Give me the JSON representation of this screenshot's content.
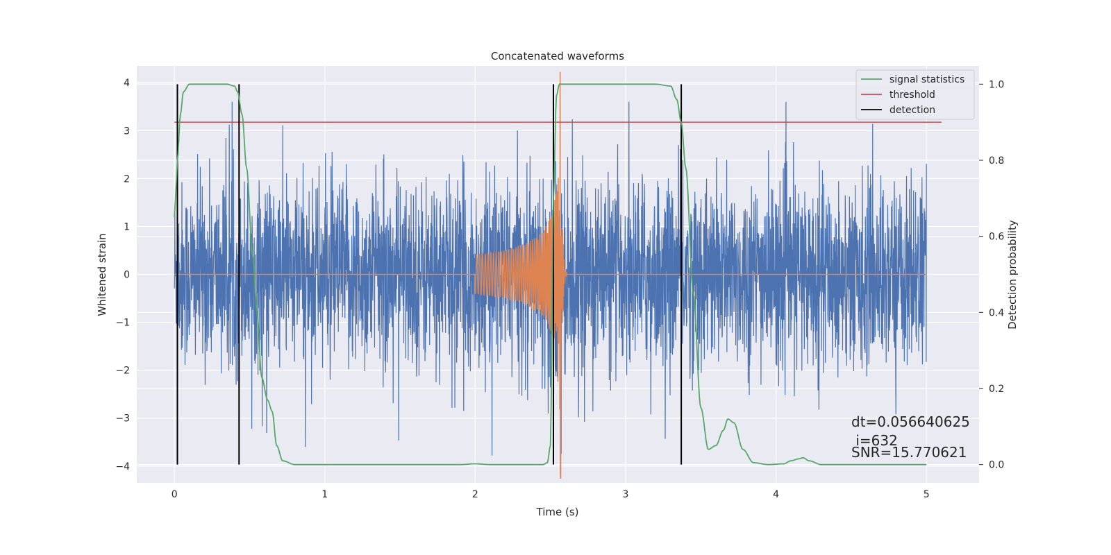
{
  "chart_data": {
    "type": "line",
    "title": "Concatenated waveforms",
    "xlabel": "Time (s)",
    "ylabel": "Whitened strain",
    "y2label": "Detection probability",
    "xlim": [
      -0.25,
      5.35
    ],
    "ylim": [
      -4.35,
      4.35
    ],
    "y2lim": [
      -0.048,
      1.048
    ],
    "x_ticks": [
      0,
      1,
      2,
      3,
      4,
      5
    ],
    "x_tick_labels": [
      "0",
      "1",
      "2",
      "3",
      "4",
      "5"
    ],
    "y_ticks": [
      -4,
      -3,
      -2,
      -1,
      0,
      1,
      2,
      3,
      4
    ],
    "y_tick_labels": [
      "−4",
      "−3",
      "−2",
      "−1",
      "0",
      "1",
      "2",
      "3",
      "4"
    ],
    "y2_ticks": [
      0.0,
      0.2,
      0.4,
      0.6,
      0.8,
      1.0
    ],
    "y2_tick_labels": [
      "0.0",
      "0.2",
      "0.4",
      "0.6",
      "0.8",
      "1.0"
    ],
    "grid": true,
    "legend_position": "top-right",
    "series": [
      {
        "name": "",
        "axis": "left",
        "color": "#4c72b0",
        "kind": "noise",
        "x_range": [
          0,
          5
        ],
        "amplitude": 0.95
      },
      {
        "name": "",
        "axis": "left",
        "color": "#dd8452",
        "kind": "chirp",
        "x_range": [
          0,
          5
        ],
        "chirp_start": 2.0,
        "merger": 2.57,
        "ringdown_end": 2.61
      },
      {
        "name": "signal statistics",
        "axis": "right",
        "color": "#55a868",
        "x": [
          0.0,
          0.01,
          0.02,
          0.04,
          0.06,
          0.1,
          0.15,
          0.25,
          0.35,
          0.4,
          0.42,
          0.45,
          0.48,
          0.52,
          0.55,
          0.58,
          0.62,
          0.65,
          0.68,
          0.72,
          0.8,
          1.0,
          1.5,
          1.9,
          2.0,
          2.1,
          2.3,
          2.45,
          2.48,
          2.5,
          2.52,
          2.54,
          2.56,
          2.58,
          2.6,
          2.8,
          3.0,
          3.2,
          3.3,
          3.34,
          3.37,
          3.4,
          3.45,
          3.5,
          3.55,
          3.6,
          3.65,
          3.68,
          3.72,
          3.78,
          3.85,
          3.95,
          4.05,
          4.1,
          4.15,
          4.18,
          4.22,
          4.3,
          4.5,
          5.0
        ],
        "values": [
          0.65,
          0.72,
          0.8,
          0.92,
          0.98,
          1.0,
          1.0,
          1.0,
          1.0,
          0.995,
          0.98,
          0.92,
          0.78,
          0.55,
          0.4,
          0.23,
          0.17,
          0.14,
          0.05,
          0.01,
          0.0,
          0.0,
          0.0,
          0.0,
          0.002,
          0.0,
          0.0,
          0.0,
          0.005,
          0.05,
          0.7,
          0.97,
          1.0,
          1.0,
          1.0,
          1.0,
          1.0,
          1.0,
          0.995,
          0.96,
          0.9,
          0.78,
          0.45,
          0.15,
          0.04,
          0.05,
          0.09,
          0.12,
          0.11,
          0.04,
          0.005,
          0.0,
          0.002,
          0.01,
          0.015,
          0.018,
          0.01,
          0.0,
          0.0,
          0.0
        ]
      },
      {
        "name": "threshold",
        "axis": "right",
        "color": "#c44e52",
        "x": [
          0.0,
          5.1
        ],
        "values": [
          0.9,
          0.9
        ]
      },
      {
        "name": "detection",
        "axis": "right",
        "color": "#000000",
        "kind": "vlines",
        "x": [
          0.02,
          0.43,
          2.52,
          3.37
        ],
        "ymin": 0.0,
        "ymax": 1.0
      }
    ],
    "annotations": [
      {
        "text": "dt=0.056640625"
      },
      {
        "text": " i=632"
      },
      {
        "text": "SNR=15.770621"
      }
    ]
  }
}
